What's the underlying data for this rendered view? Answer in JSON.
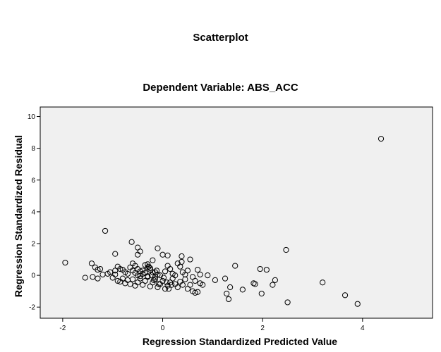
{
  "chart_data": {
    "type": "scatter",
    "title": "Scatterplot",
    "subtitle": "Dependent Variable: ABS_ACC",
    "xlabel": "Regression Standardized Predicted Value",
    "ylabel": "Regression Standardized Residual",
    "xlim": [
      -2.45,
      5.4
    ],
    "ylim": [
      -2.7,
      10.6
    ],
    "xticks": [
      -2,
      0,
      2,
      4
    ],
    "yticks": [
      -2,
      0,
      2,
      4,
      6,
      8,
      10
    ],
    "grid": false,
    "plot_background": "#f0f0f0",
    "marker": "open-circle",
    "points": [
      [
        4.37,
        8.6
      ],
      [
        -1.15,
        2.8
      ],
      [
        -0.62,
        2.1
      ],
      [
        -1.95,
        0.8
      ],
      [
        2.47,
        1.6
      ],
      [
        -0.95,
        1.35
      ],
      [
        -0.5,
        1.75
      ],
      [
        -0.1,
        1.7
      ],
      [
        0.0,
        1.3
      ],
      [
        0.1,
        1.25
      ],
      [
        0.38,
        1.2
      ],
      [
        -0.5,
        1.3
      ],
      [
        -0.45,
        1.5
      ],
      [
        0.55,
        1.0
      ],
      [
        0.38,
        0.85
      ],
      [
        -1.42,
        0.75
      ],
      [
        -1.35,
        0.5
      ],
      [
        -1.3,
        0.35
      ],
      [
        -1.25,
        0.4
      ],
      [
        -1.1,
        0.1
      ],
      [
        -1.05,
        0.2
      ],
      [
        -0.95,
        0.3
      ],
      [
        -0.9,
        0.55
      ],
      [
        -0.85,
        0.4
      ],
      [
        -0.8,
        0.35
      ],
      [
        -0.75,
        0.2
      ],
      [
        -0.7,
        0.1
      ],
      [
        -0.65,
        0.5
      ],
      [
        -0.6,
        0.75
      ],
      [
        -0.55,
        0.6
      ],
      [
        -0.5,
        0.4
      ],
      [
        -0.45,
        0.25
      ],
      [
        -0.4,
        0.1
      ],
      [
        -0.35,
        0.65
      ],
      [
        -0.3,
        0.5
      ],
      [
        -0.25,
        0.35
      ],
      [
        -0.2,
        0.95
      ],
      [
        -0.15,
        0.2
      ],
      [
        -0.1,
        0.05
      ],
      [
        -0.05,
        0.0
      ],
      [
        0.05,
        0.25
      ],
      [
        0.1,
        0.6
      ],
      [
        0.15,
        0.4
      ],
      [
        0.2,
        0.1
      ],
      [
        0.25,
        0.0
      ],
      [
        0.3,
        0.75
      ],
      [
        0.35,
        0.55
      ],
      [
        0.4,
        0.2
      ],
      [
        0.45,
        0.05
      ],
      [
        0.5,
        0.3
      ],
      [
        0.6,
        -0.1
      ],
      [
        0.65,
        -0.35
      ],
      [
        0.7,
        0.35
      ],
      [
        0.75,
        0.05
      ],
      [
        0.8,
        -0.6
      ],
      [
        -1.55,
        -0.15
      ],
      [
        -1.4,
        -0.1
      ],
      [
        -1.3,
        -0.2
      ],
      [
        -1.2,
        0.05
      ],
      [
        -1.0,
        -0.15
      ],
      [
        -0.95,
        0.05
      ],
      [
        -0.9,
        -0.35
      ],
      [
        -0.85,
        -0.4
      ],
      [
        -0.8,
        -0.2
      ],
      [
        -0.75,
        -0.5
      ],
      [
        -0.7,
        -0.3
      ],
      [
        -0.65,
        -0.55
      ],
      [
        -0.6,
        -0.25
      ],
      [
        -0.55,
        -0.65
      ],
      [
        -0.5,
        -0.45
      ],
      [
        -0.45,
        -0.2
      ],
      [
        -0.4,
        -0.6
      ],
      [
        -0.35,
        -0.35
      ],
      [
        -0.3,
        -0.1
      ],
      [
        -0.25,
        -0.7
      ],
      [
        -0.2,
        -0.45
      ],
      [
        -0.15,
        -0.25
      ],
      [
        -0.1,
        -0.75
      ],
      [
        -0.05,
        -0.55
      ],
      [
        0.0,
        -0.35
      ],
      [
        0.05,
        -0.85
      ],
      [
        0.1,
        -0.65
      ],
      [
        0.15,
        -0.45
      ],
      [
        0.2,
        -0.2
      ],
      [
        0.25,
        -0.55
      ],
      [
        0.3,
        -0.75
      ],
      [
        0.35,
        -0.4
      ],
      [
        0.4,
        -0.6
      ],
      [
        0.45,
        -0.25
      ],
      [
        0.5,
        -0.85
      ],
      [
        0.55,
        -0.6
      ],
      [
        0.6,
        -1.0
      ],
      [
        0.65,
        -1.1
      ],
      [
        0.7,
        -1.05
      ],
      [
        0.75,
        -0.5
      ],
      [
        -0.6,
        0.3
      ],
      [
        -0.55,
        0.15
      ],
      [
        -0.5,
        0.0
      ],
      [
        -0.45,
        -0.05
      ],
      [
        -0.4,
        0.3
      ],
      [
        -0.35,
        0.15
      ],
      [
        -0.3,
        -0.05
      ],
      [
        -0.25,
        0.45
      ],
      [
        -0.2,
        0.2
      ],
      [
        -0.15,
        -0.1
      ],
      [
        -0.3,
        0.7
      ],
      [
        -0.28,
        0.55
      ],
      [
        -0.22,
        0.0
      ],
      [
        -0.18,
        -0.3
      ],
      [
        -0.12,
        0.3
      ],
      [
        -0.08,
        -0.55
      ],
      [
        0.02,
        -0.15
      ],
      [
        0.08,
        -0.45
      ],
      [
        0.12,
        -0.85
      ],
      [
        0.18,
        -0.6
      ],
      [
        0.9,
        0.0
      ],
      [
        1.05,
        -0.3
      ],
      [
        1.25,
        -0.2
      ],
      [
        1.28,
        -1.15
      ],
      [
        1.32,
        -1.5
      ],
      [
        1.35,
        -0.75
      ],
      [
        1.45,
        0.6
      ],
      [
        1.6,
        -0.9
      ],
      [
        1.82,
        -0.5
      ],
      [
        1.85,
        -0.55
      ],
      [
        1.95,
        0.4
      ],
      [
        1.98,
        -1.15
      ],
      [
        2.08,
        0.35
      ],
      [
        2.2,
        -0.6
      ],
      [
        2.25,
        -0.3
      ],
      [
        2.5,
        -1.7
      ],
      [
        3.2,
        -0.45
      ],
      [
        3.65,
        -1.25
      ],
      [
        3.9,
        -1.8
      ]
    ]
  }
}
